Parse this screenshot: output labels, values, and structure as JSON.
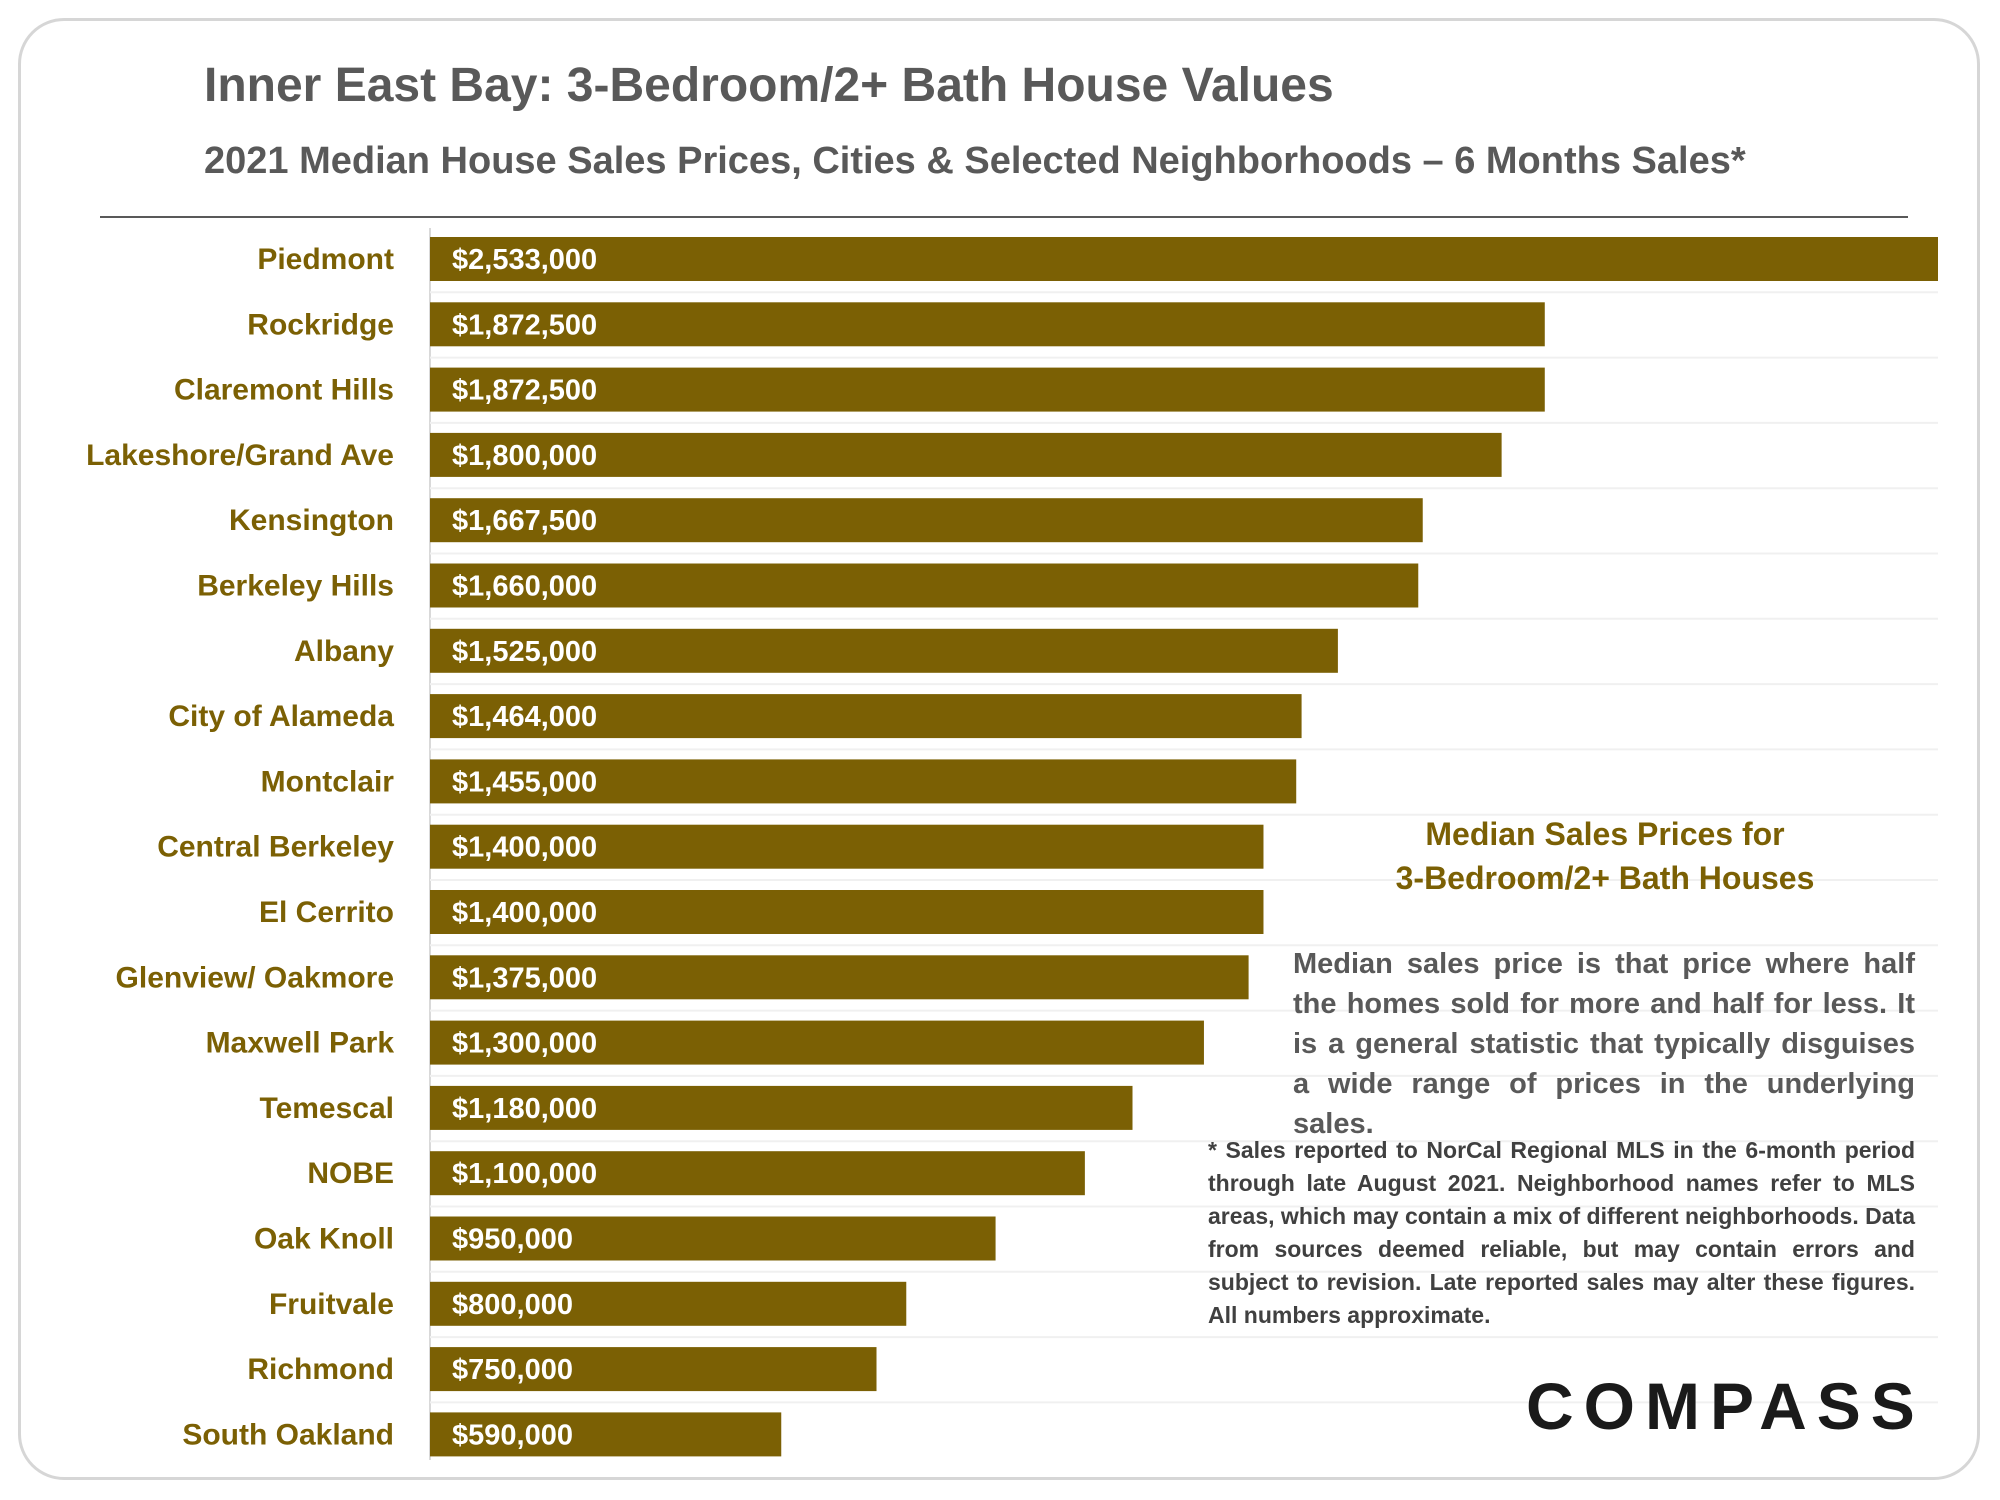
{
  "header": {
    "title": "Inner East Bay: 3-Bedroom/2+ Bath House Values",
    "subtitle": "2021 Median House Sales Prices, Cities & Selected Neighborhoods  – 6 Months Sales*"
  },
  "colors": {
    "bar": "#7b6004",
    "label": "#7b6004",
    "text": "#595959"
  },
  "chart_data": {
    "type": "bar",
    "orientation": "horizontal",
    "categories": [
      "Piedmont",
      "Rockridge",
      "Claremont Hills",
      "Lakeshore/Grand Ave",
      "Kensington",
      "Berkeley Hills",
      "Albany",
      "City of Alameda",
      "Montclair",
      "Central Berkeley",
      "El Cerrito",
      "Glenview/ Oakmore",
      "Maxwell Park",
      "Temescal",
      "NOBE",
      "Oak Knoll",
      "Fruitvale",
      "Richmond",
      "South Oakland"
    ],
    "values": [
      2533000,
      1872500,
      1872500,
      1800000,
      1667500,
      1660000,
      1525000,
      1464000,
      1455000,
      1400000,
      1400000,
      1375000,
      1300000,
      1180000,
      1100000,
      950000,
      800000,
      750000,
      590000
    ],
    "data_labels": [
      "$2,533,000",
      "$1,872,500",
      "$1,872,500",
      "$1,800,000",
      "$1,667,500",
      "$1,660,000",
      "$1,525,000",
      "$1,464,000",
      "$1,455,000",
      "$1,400,000",
      "$1,400,000",
      "$1,375,000",
      "$1,300,000",
      "$1,180,000",
      "$1,100,000",
      "$950,000",
      "$800,000",
      "$750,000",
      "$590,000"
    ],
    "xlim": [
      0,
      2533000
    ],
    "grid": false,
    "legend": "none"
  },
  "annotation": {
    "title_line1": "Median Sales Prices for",
    "title_line2": "3-Bedroom/2+ Bath Houses",
    "description": "Median sales price is that price where half the homes sold for more and half for less. It is a general statistic that typically disguises a wide range of prices in the underlying sales.",
    "footnote": "* Sales reported to NorCal Regional MLS in the 6-month period through late August 2021. Neighborhood names refer to MLS areas, which may contain a mix of different neighborhoods. Data from sources deemed reliable, but may contain errors and subject to revision. Late reported sales may alter these figures. All numbers approximate."
  },
  "branding": {
    "logo": "COMPASS"
  }
}
